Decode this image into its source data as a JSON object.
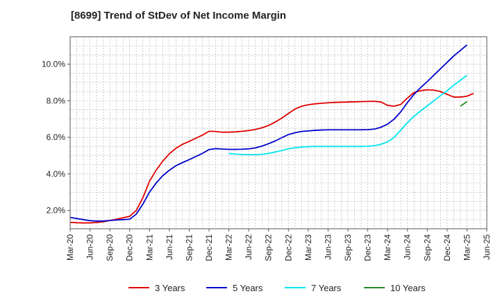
{
  "chart_data": {
    "type": "line",
    "title": "[8699]  Trend of StDev of Net Income Margin",
    "xlabel": "",
    "ylabel": "",
    "ylim": [
      1.0,
      11.5
    ],
    "grid": true,
    "legend_position": "bottom",
    "x_ticks": [
      "Mar-20",
      "Jun-20",
      "Sep-20",
      "Dec-20",
      "Mar-21",
      "Jun-21",
      "Sep-21",
      "Dec-21",
      "Mar-22",
      "Jun-22",
      "Sep-22",
      "Dec-22",
      "Mar-23",
      "Jun-23",
      "Sep-23",
      "Dec-23",
      "Mar-24",
      "Jun-24",
      "Sep-24",
      "Dec-24",
      "Mar-25",
      "Jun-25"
    ],
    "y_ticks": [
      {
        "value": 2,
        "label": "2.0%"
      },
      {
        "value": 4,
        "label": "4.0%"
      },
      {
        "value": 6,
        "label": "6.0%"
      },
      {
        "value": 8,
        "label": "8.0%"
      },
      {
        "value": 10,
        "label": "10.0%"
      }
    ],
    "series": [
      {
        "name": "3 Years",
        "color": "#e00000",
        "points": [
          [
            "Mar-20",
            1.35
          ],
          [
            "Apr-20",
            1.33
          ],
          [
            "May-20",
            1.32
          ],
          [
            "Jun-20",
            1.32
          ],
          [
            "Jul-20",
            1.34
          ],
          [
            "Aug-20",
            1.38
          ],
          [
            "Sep-20",
            1.45
          ],
          [
            "Oct-20",
            1.52
          ],
          [
            "Nov-20",
            1.6
          ],
          [
            "Dec-20",
            1.68
          ],
          [
            "Jan-21",
            2.0
          ],
          [
            "Feb-21",
            2.7
          ],
          [
            "Mar-21",
            3.6
          ],
          [
            "Apr-21",
            4.2
          ],
          [
            "May-21",
            4.7
          ],
          [
            "Jun-21",
            5.1
          ],
          [
            "Jul-21",
            5.4
          ],
          [
            "Aug-21",
            5.62
          ],
          [
            "Sep-21",
            5.78
          ],
          [
            "Oct-21",
            5.95
          ],
          [
            "Nov-21",
            6.12
          ],
          [
            "Dec-21",
            6.33
          ],
          [
            "Jan-22",
            6.32
          ],
          [
            "Feb-22",
            6.28
          ],
          [
            "Mar-22",
            6.28
          ],
          [
            "Apr-22",
            6.3
          ],
          [
            "May-22",
            6.33
          ],
          [
            "Jun-22",
            6.37
          ],
          [
            "Jul-22",
            6.43
          ],
          [
            "Aug-22",
            6.52
          ],
          [
            "Sep-22",
            6.65
          ],
          [
            "Oct-22",
            6.83
          ],
          [
            "Nov-22",
            7.05
          ],
          [
            "Dec-22",
            7.3
          ],
          [
            "Jan-23",
            7.55
          ],
          [
            "Feb-23",
            7.7
          ],
          [
            "Mar-23",
            7.78
          ],
          [
            "Apr-23",
            7.83
          ],
          [
            "May-23",
            7.86
          ],
          [
            "Jun-23",
            7.89
          ],
          [
            "Jul-23",
            7.91
          ],
          [
            "Aug-23",
            7.92
          ],
          [
            "Sep-23",
            7.93
          ],
          [
            "Oct-23",
            7.94
          ],
          [
            "Nov-23",
            7.95
          ],
          [
            "Dec-23",
            7.96
          ],
          [
            "Jan-24",
            7.97
          ],
          [
            "Feb-24",
            7.93
          ],
          [
            "Mar-24",
            7.75
          ],
          [
            "Apr-24",
            7.7
          ],
          [
            "May-24",
            7.8
          ],
          [
            "Jun-24",
            8.15
          ],
          [
            "Jul-24",
            8.45
          ],
          [
            "Aug-24",
            8.55
          ],
          [
            "Sep-24",
            8.6
          ],
          [
            "Oct-24",
            8.58
          ],
          [
            "Nov-24",
            8.5
          ],
          [
            "Dec-24",
            8.35
          ],
          [
            "Jan-25",
            8.2
          ],
          [
            "Feb-25",
            8.2
          ],
          [
            "Mar-25",
            8.25
          ],
          [
            "Apr-25",
            8.4
          ]
        ]
      },
      {
        "name": "5 Years",
        "color": "#0000cc",
        "points": [
          [
            "Mar-20",
            1.62
          ],
          [
            "Apr-20",
            1.56
          ],
          [
            "May-20",
            1.5
          ],
          [
            "Jun-20",
            1.44
          ],
          [
            "Jul-20",
            1.42
          ],
          [
            "Aug-20",
            1.42
          ],
          [
            "Sep-20",
            1.45
          ],
          [
            "Oct-20",
            1.48
          ],
          [
            "Nov-20",
            1.5
          ],
          [
            "Dec-20",
            1.52
          ],
          [
            "Jan-21",
            1.8
          ],
          [
            "Feb-21",
            2.35
          ],
          [
            "Mar-21",
            3.0
          ],
          [
            "Apr-21",
            3.5
          ],
          [
            "May-21",
            3.9
          ],
          [
            "Jun-21",
            4.2
          ],
          [
            "Jul-21",
            4.45
          ],
          [
            "Aug-21",
            4.62
          ],
          [
            "Sep-21",
            4.78
          ],
          [
            "Oct-21",
            4.95
          ],
          [
            "Nov-21",
            5.12
          ],
          [
            "Dec-21",
            5.33
          ],
          [
            "Jan-22",
            5.38
          ],
          [
            "Feb-22",
            5.36
          ],
          [
            "Mar-22",
            5.34
          ],
          [
            "Apr-22",
            5.34
          ],
          [
            "May-22",
            5.35
          ],
          [
            "Jun-22",
            5.37
          ],
          [
            "Jul-22",
            5.42
          ],
          [
            "Aug-22",
            5.52
          ],
          [
            "Sep-22",
            5.65
          ],
          [
            "Oct-22",
            5.8
          ],
          [
            "Nov-22",
            5.98
          ],
          [
            "Dec-22",
            6.15
          ],
          [
            "Jan-23",
            6.25
          ],
          [
            "Feb-23",
            6.32
          ],
          [
            "Mar-23",
            6.35
          ],
          [
            "Apr-23",
            6.38
          ],
          [
            "May-23",
            6.4
          ],
          [
            "Jun-23",
            6.41
          ],
          [
            "Jul-23",
            6.41
          ],
          [
            "Aug-23",
            6.41
          ],
          [
            "Sep-23",
            6.41
          ],
          [
            "Oct-23",
            6.41
          ],
          [
            "Nov-23",
            6.41
          ],
          [
            "Dec-23",
            6.42
          ],
          [
            "Jan-24",
            6.45
          ],
          [
            "Feb-24",
            6.55
          ],
          [
            "Mar-24",
            6.72
          ],
          [
            "Apr-24",
            7.0
          ],
          [
            "May-24",
            7.4
          ],
          [
            "Jun-24",
            7.9
          ],
          [
            "Jul-24",
            8.35
          ],
          [
            "Aug-24",
            8.72
          ],
          [
            "Sep-24",
            9.05
          ],
          [
            "Oct-24",
            9.4
          ],
          [
            "Nov-24",
            9.75
          ],
          [
            "Dec-24",
            10.1
          ],
          [
            "Jan-25",
            10.45
          ],
          [
            "Feb-25",
            10.75
          ],
          [
            "Mar-25",
            11.05
          ]
        ]
      },
      {
        "name": "7 Years",
        "color": "#00e5ee",
        "points": [
          [
            "Mar-22",
            5.12
          ],
          [
            "Apr-22",
            5.08
          ],
          [
            "May-22",
            5.06
          ],
          [
            "Jun-22",
            5.05
          ],
          [
            "Jul-22",
            5.05
          ],
          [
            "Aug-22",
            5.07
          ],
          [
            "Sep-22",
            5.12
          ],
          [
            "Oct-22",
            5.2
          ],
          [
            "Nov-22",
            5.28
          ],
          [
            "Dec-22",
            5.37
          ],
          [
            "Jan-23",
            5.43
          ],
          [
            "Feb-23",
            5.47
          ],
          [
            "Mar-23",
            5.49
          ],
          [
            "Apr-23",
            5.5
          ],
          [
            "May-23",
            5.5
          ],
          [
            "Jun-23",
            5.5
          ],
          [
            "Jul-23",
            5.5
          ],
          [
            "Aug-23",
            5.5
          ],
          [
            "Sep-23",
            5.5
          ],
          [
            "Oct-23",
            5.5
          ],
          [
            "Nov-23",
            5.5
          ],
          [
            "Dec-23",
            5.51
          ],
          [
            "Jan-24",
            5.54
          ],
          [
            "Feb-24",
            5.62
          ],
          [
            "Mar-24",
            5.75
          ],
          [
            "Apr-24",
            6.0
          ],
          [
            "May-24",
            6.4
          ],
          [
            "Jun-24",
            6.8
          ],
          [
            "Jul-24",
            7.15
          ],
          [
            "Aug-24",
            7.45
          ],
          [
            "Sep-24",
            7.72
          ],
          [
            "Oct-24",
            8.0
          ],
          [
            "Nov-24",
            8.28
          ],
          [
            "Dec-24",
            8.55
          ],
          [
            "Jan-25",
            8.85
          ],
          [
            "Feb-25",
            9.12
          ],
          [
            "Mar-25",
            9.4
          ]
        ]
      },
      {
        "name": "10 Years",
        "color": "#228b22",
        "points": [
          [
            "Feb-25",
            7.7
          ],
          [
            "Mar-25",
            7.95
          ]
        ]
      }
    ]
  }
}
